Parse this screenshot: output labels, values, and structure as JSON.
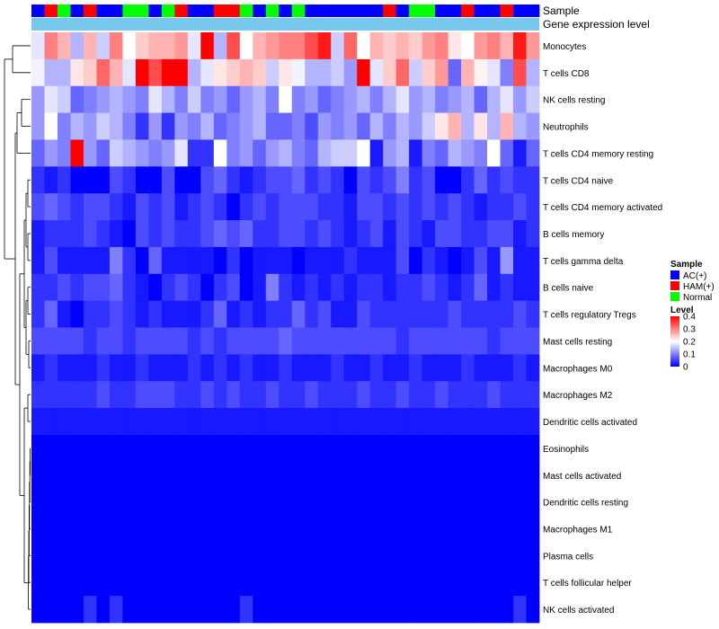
{
  "chart_data": {
    "type": "heatmap",
    "title": "",
    "annotation_tracks": [
      "Sample",
      "Gene expression level"
    ],
    "sample_groups": [
      "A",
      "H",
      "N",
      "A",
      "H",
      "A",
      "A",
      "N",
      "N",
      "A",
      "N",
      "H",
      "A",
      "A",
      "H",
      "H",
      "N",
      "A",
      "N",
      "A",
      "N",
      "A",
      "A",
      "A",
      "A",
      "A",
      "A",
      "H",
      "A",
      "N",
      "N",
      "A",
      "A",
      "H",
      "A",
      "A",
      "H",
      "A",
      "A"
    ],
    "gene_expression_level_color": "#77C8EC",
    "rows": [
      "Monocytes",
      "T cells CD8",
      "NK cells resting",
      "Neutrophils",
      "T cells CD4 memory resting",
      "T cells CD4 naive",
      "T cells CD4 memory activated",
      "B cells memory",
      "T cells gamma delta",
      "B cells naive",
      "T cells regulatory  Tregs",
      "Mast cells resting",
      "Macrophages M0",
      "Macrophages M2",
      "Dendritic cells activated",
      "Eosinophils",
      "Mast cells activated",
      "Dendritic cells resting",
      "Macrophages M1",
      "Plasma cells",
      "T cells follicular helper",
      "NK cells activated"
    ],
    "values": [
      [
        0.18,
        0.3,
        0.26,
        0.14,
        0.26,
        0.16,
        0.3,
        0.2,
        0.24,
        0.26,
        0.26,
        0.28,
        0.18,
        0.4,
        0.14,
        0.34,
        0.2,
        0.26,
        0.28,
        0.3,
        0.3,
        0.34,
        0.38,
        0.16,
        0.32,
        0.2,
        0.26,
        0.24,
        0.26,
        0.24,
        0.28,
        0.3,
        0.22,
        0.2,
        0.28,
        0.3,
        0.26,
        0.38,
        0.28
      ],
      [
        0.19,
        0.14,
        0.14,
        0.22,
        0.24,
        0.32,
        0.26,
        0.18,
        0.4,
        0.34,
        0.4,
        0.4,
        0.14,
        0.18,
        0.22,
        0.24,
        0.26,
        0.24,
        0.16,
        0.22,
        0.19,
        0.14,
        0.14,
        0.16,
        0.12,
        0.4,
        0.18,
        0.24,
        0.32,
        0.16,
        0.24,
        0.28,
        0.08,
        0.26,
        0.21,
        0.18,
        0.1,
        0.34,
        0.14
      ],
      [
        0.12,
        0.18,
        0.16,
        0.08,
        0.1,
        0.12,
        0.14,
        0.12,
        0.1,
        0.18,
        0.14,
        0.1,
        0.16,
        0.1,
        0.12,
        0.08,
        0.12,
        0.14,
        0.1,
        0.2,
        0.1,
        0.12,
        0.08,
        0.1,
        0.12,
        0.14,
        0.1,
        0.14,
        0.18,
        0.12,
        0.14,
        0.1,
        0.12,
        0.14,
        0.08,
        0.14,
        0.18,
        0.12,
        0.16
      ],
      [
        0.12,
        0.2,
        0.1,
        0.14,
        0.12,
        0.16,
        0.14,
        0.1,
        0.04,
        0.12,
        0.04,
        0.12,
        0.1,
        0.14,
        0.08,
        0.1,
        0.12,
        0.14,
        0.08,
        0.08,
        0.1,
        0.06,
        0.12,
        0.1,
        0.12,
        0.08,
        0.14,
        0.1,
        0.14,
        0.12,
        0.16,
        0.22,
        0.26,
        0.14,
        0.22,
        0.14,
        0.26,
        0.14,
        0.12
      ],
      [
        0.08,
        0.12,
        0.1,
        0.4,
        0.12,
        0.08,
        0.16,
        0.14,
        0.12,
        0.1,
        0.12,
        0.18,
        0.04,
        0.04,
        0.2,
        0.1,
        0.12,
        0.08,
        0.12,
        0.14,
        0.1,
        0.08,
        0.14,
        0.16,
        0.16,
        0.2,
        0.02,
        0.12,
        0.14,
        0.02,
        0.1,
        0.08,
        0.14,
        0.12,
        0.1,
        0.2,
        0.08,
        0.02,
        0.08
      ],
      [
        0.04,
        0.02,
        0.04,
        0.0,
        0.0,
        0.0,
        0.06,
        0.04,
        0.0,
        0.0,
        0.06,
        0.0,
        0.0,
        0.06,
        0.08,
        0.04,
        0.02,
        0.04,
        0.06,
        0.06,
        0.08,
        0.04,
        0.06,
        0.04,
        0.0,
        0.06,
        0.04,
        0.06,
        0.1,
        0.04,
        0.06,
        0.0,
        0.0,
        0.04,
        0.08,
        0.04,
        0.06,
        0.04,
        0.04
      ],
      [
        0.06,
        0.08,
        0.06,
        0.04,
        0.06,
        0.06,
        0.04,
        0.02,
        0.06,
        0.04,
        0.06,
        0.02,
        0.04,
        0.06,
        0.04,
        0.0,
        0.04,
        0.06,
        0.04,
        0.06,
        0.06,
        0.06,
        0.04,
        0.04,
        0.02,
        0.06,
        0.06,
        0.04,
        0.06,
        0.04,
        0.06,
        0.04,
        0.06,
        0.04,
        0.02,
        0.04,
        0.04,
        0.06,
        0.04
      ],
      [
        0.02,
        0.04,
        0.04,
        0.04,
        0.06,
        0.04,
        0.02,
        0.0,
        0.06,
        0.04,
        0.06,
        0.04,
        0.04,
        0.06,
        0.08,
        0.06,
        0.08,
        0.04,
        0.04,
        0.06,
        0.06,
        0.04,
        0.06,
        0.04,
        0.02,
        0.04,
        0.06,
        0.02,
        0.06,
        0.04,
        0.02,
        0.06,
        0.06,
        0.04,
        0.04,
        0.06,
        0.06,
        0.02,
        0.04
      ],
      [
        0.02,
        0.06,
        0.02,
        0.02,
        0.02,
        0.02,
        0.1,
        0.04,
        0.0,
        0.08,
        0.02,
        0.02,
        0.02,
        0.02,
        0.0,
        0.04,
        0.0,
        0.02,
        0.02,
        0.02,
        0.0,
        0.02,
        0.02,
        0.02,
        0.04,
        0.02,
        0.02,
        0.02,
        0.06,
        0.0,
        0.04,
        0.02,
        0.0,
        0.02,
        0.06,
        0.02,
        0.12,
        0.02,
        0.02
      ],
      [
        0.04,
        0.04,
        0.06,
        0.04,
        0.06,
        0.06,
        0.08,
        0.04,
        0.02,
        0.0,
        0.04,
        0.06,
        0.04,
        0.0,
        0.04,
        0.06,
        0.0,
        0.02,
        0.1,
        0.04,
        0.02,
        0.04,
        0.02,
        0.04,
        0.02,
        0.04,
        0.04,
        0.02,
        0.04,
        0.04,
        0.06,
        0.04,
        0.02,
        0.04,
        0.08,
        0.02,
        0.04,
        0.02,
        0.02
      ],
      [
        0.04,
        0.08,
        0.02,
        0.0,
        0.04,
        0.04,
        0.06,
        0.04,
        0.02,
        0.04,
        0.02,
        0.02,
        0.02,
        0.04,
        0.08,
        0.02,
        0.04,
        0.02,
        0.04,
        0.04,
        0.08,
        0.04,
        0.06,
        0.02,
        0.02,
        0.06,
        0.04,
        0.04,
        0.04,
        0.04,
        0.04,
        0.04,
        0.06,
        0.04,
        0.04,
        0.04,
        0.04,
        0.06,
        0.04
      ],
      [
        0.06,
        0.06,
        0.06,
        0.06,
        0.04,
        0.06,
        0.06,
        0.04,
        0.06,
        0.06,
        0.06,
        0.06,
        0.04,
        0.06,
        0.04,
        0.06,
        0.06,
        0.06,
        0.06,
        0.08,
        0.06,
        0.06,
        0.06,
        0.06,
        0.06,
        0.06,
        0.06,
        0.06,
        0.04,
        0.06,
        0.06,
        0.06,
        0.06,
        0.06,
        0.06,
        0.04,
        0.06,
        0.06,
        0.06
      ],
      [
        0.02,
        0.04,
        0.02,
        0.02,
        0.02,
        0.04,
        0.02,
        0.02,
        0.04,
        0.02,
        0.02,
        0.02,
        0.04,
        0.02,
        0.04,
        0.02,
        0.04,
        0.02,
        0.02,
        0.04,
        0.02,
        0.02,
        0.02,
        0.04,
        0.02,
        0.02,
        0.04,
        0.02,
        0.02,
        0.04,
        0.02,
        0.02,
        0.02,
        0.04,
        0.02,
        0.02,
        0.02,
        0.04,
        0.02
      ],
      [
        0.04,
        0.04,
        0.04,
        0.04,
        0.04,
        0.06,
        0.04,
        0.04,
        0.06,
        0.06,
        0.06,
        0.04,
        0.04,
        0.06,
        0.04,
        0.06,
        0.04,
        0.04,
        0.06,
        0.04,
        0.04,
        0.06,
        0.04,
        0.04,
        0.04,
        0.06,
        0.04,
        0.04,
        0.06,
        0.04,
        0.04,
        0.06,
        0.04,
        0.04,
        0.04,
        0.06,
        0.04,
        0.04,
        0.04
      ],
      [
        0.02,
        0.02,
        0.02,
        0.02,
        0.02,
        0.02,
        0.02,
        0.02,
        0.02,
        0.02,
        0.02,
        0.02,
        0.02,
        0.02,
        0.02,
        0.02,
        0.02,
        0.02,
        0.02,
        0.02,
        0.02,
        0.02,
        0.02,
        0.02,
        0.02,
        0.02,
        0.02,
        0.02,
        0.02,
        0.02,
        0.02,
        0.02,
        0.02,
        0.02,
        0.02,
        0.02,
        0.02,
        0.02,
        0.02
      ],
      [
        0.0,
        0.0,
        0.0,
        0.0,
        0.0,
        0.0,
        0.0,
        0.0,
        0.0,
        0.0,
        0.0,
        0.0,
        0.0,
        0.0,
        0.0,
        0.0,
        0.0,
        0.0,
        0.0,
        0.0,
        0.0,
        0.0,
        0.0,
        0.0,
        0.0,
        0.0,
        0.0,
        0.0,
        0.0,
        0.0,
        0.0,
        0.0,
        0.0,
        0.0,
        0.0,
        0.0,
        0.0,
        0.0,
        0.0
      ],
      [
        0.0,
        0.0,
        0.0,
        0.0,
        0.0,
        0.0,
        0.0,
        0.0,
        0.0,
        0.0,
        0.0,
        0.0,
        0.0,
        0.0,
        0.0,
        0.0,
        0.0,
        0.0,
        0.0,
        0.0,
        0.0,
        0.0,
        0.0,
        0.0,
        0.0,
        0.0,
        0.0,
        0.0,
        0.0,
        0.0,
        0.0,
        0.0,
        0.0,
        0.0,
        0.0,
        0.0,
        0.0,
        0.0,
        0.0
      ],
      [
        0.0,
        0.0,
        0.0,
        0.0,
        0.0,
        0.0,
        0.0,
        0.0,
        0.0,
        0.0,
        0.0,
        0.0,
        0.0,
        0.0,
        0.0,
        0.0,
        0.0,
        0.0,
        0.0,
        0.0,
        0.0,
        0.0,
        0.0,
        0.0,
        0.0,
        0.0,
        0.0,
        0.0,
        0.0,
        0.0,
        0.0,
        0.0,
        0.0,
        0.0,
        0.0,
        0.0,
        0.0,
        0.0,
        0.0
      ],
      [
        0.0,
        0.0,
        0.0,
        0.0,
        0.0,
        0.0,
        0.0,
        0.0,
        0.0,
        0.0,
        0.0,
        0.0,
        0.0,
        0.0,
        0.0,
        0.0,
        0.0,
        0.0,
        0.0,
        0.0,
        0.0,
        0.0,
        0.0,
        0.0,
        0.0,
        0.0,
        0.0,
        0.0,
        0.0,
        0.0,
        0.0,
        0.0,
        0.0,
        0.0,
        0.0,
        0.0,
        0.0,
        0.0,
        0.0
      ],
      [
        0.0,
        0.0,
        0.0,
        0.0,
        0.0,
        0.0,
        0.0,
        0.0,
        0.0,
        0.0,
        0.0,
        0.0,
        0.0,
        0.0,
        0.0,
        0.0,
        0.0,
        0.0,
        0.0,
        0.0,
        0.0,
        0.0,
        0.0,
        0.0,
        0.0,
        0.0,
        0.0,
        0.0,
        0.0,
        0.0,
        0.0,
        0.0,
        0.0,
        0.0,
        0.0,
        0.0,
        0.0,
        0.0,
        0.0
      ],
      [
        0.0,
        0.0,
        0.0,
        0.0,
        0.0,
        0.0,
        0.0,
        0.0,
        0.0,
        0.0,
        0.0,
        0.0,
        0.0,
        0.0,
        0.0,
        0.0,
        0.0,
        0.0,
        0.0,
        0.0,
        0.0,
        0.0,
        0.0,
        0.0,
        0.0,
        0.0,
        0.0,
        0.0,
        0.0,
        0.0,
        0.0,
        0.0,
        0.0,
        0.0,
        0.0,
        0.0,
        0.0,
        0.0,
        0.0
      ],
      [
        0.0,
        0.0,
        0.0,
        0.0,
        0.04,
        0.0,
        0.04,
        0.0,
        0.0,
        0.0,
        0.0,
        0.0,
        0.0,
        0.0,
        0.0,
        0.0,
        0.04,
        0.0,
        0.0,
        0.0,
        0.0,
        0.0,
        0.0,
        0.0,
        0.0,
        0.0,
        0.0,
        0.0,
        0.0,
        0.0,
        0.0,
        0.0,
        0.0,
        0.0,
        0.0,
        0.0,
        0.0,
        0.04,
        0.0
      ]
    ],
    "color_scale": {
      "min": 0,
      "mid": 0.2,
      "max": 0.4,
      "low": "#0000FF",
      "middle": "#FFFFFF",
      "high": "#FF0000"
    },
    "legend": {
      "position": "right",
      "sample_title": "Sample",
      "sample_entries": [
        {
          "key": "A",
          "label": "AC(+)",
          "color": "#0000FF"
        },
        {
          "key": "H",
          "label": "HAM(+)",
          "color": "#FF0000"
        },
        {
          "key": "N",
          "label": "Normal",
          "color": "#00FF00"
        }
      ],
      "level_title": "Level",
      "level_ticks": [
        0.4,
        0.3,
        0.2,
        0.1,
        0
      ],
      "level_tick_labels": [
        "0.4",
        "0.3",
        "0.2",
        "0.1",
        "0"
      ]
    },
    "row_dendrogram": "left"
  }
}
